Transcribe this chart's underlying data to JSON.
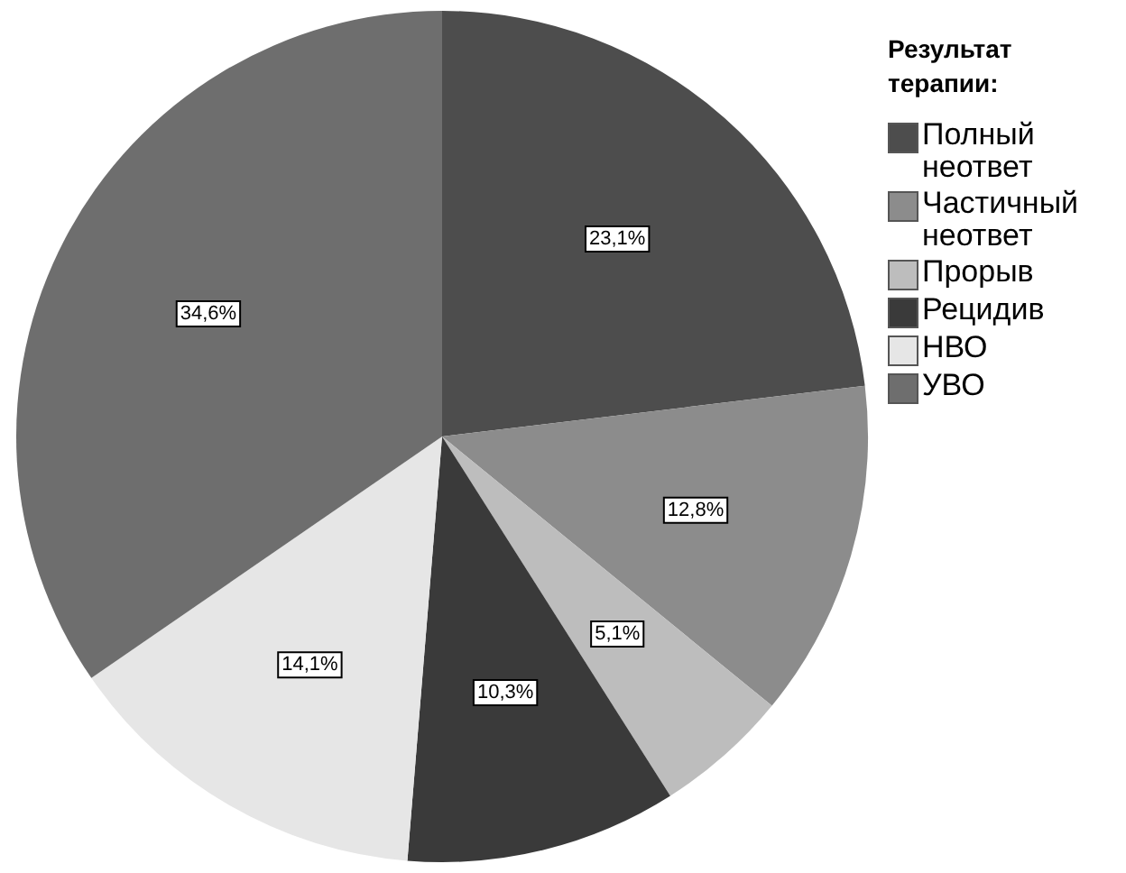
{
  "chart_data": {
    "type": "pie",
    "legend_title": "Результат терапии:",
    "legend": "top right",
    "categories": [
      "Полный неответ",
      "Частичный неответ",
      "Прорыв",
      "Рецидив",
      "НВО",
      "УВО"
    ],
    "values": [
      23.1,
      12.8,
      5.1,
      10.3,
      14.1,
      34.6
    ],
    "colors": [
      "#4d4d4d",
      "#8c8c8c",
      "#bdbdbd",
      "#3a3a3a",
      "#e6e6e6",
      "#6e6e6e"
    ],
    "value_labels": [
      "23,1%",
      "12,8%",
      "5,1%",
      "10,3%",
      "14,1%",
      "34,6%"
    ]
  }
}
